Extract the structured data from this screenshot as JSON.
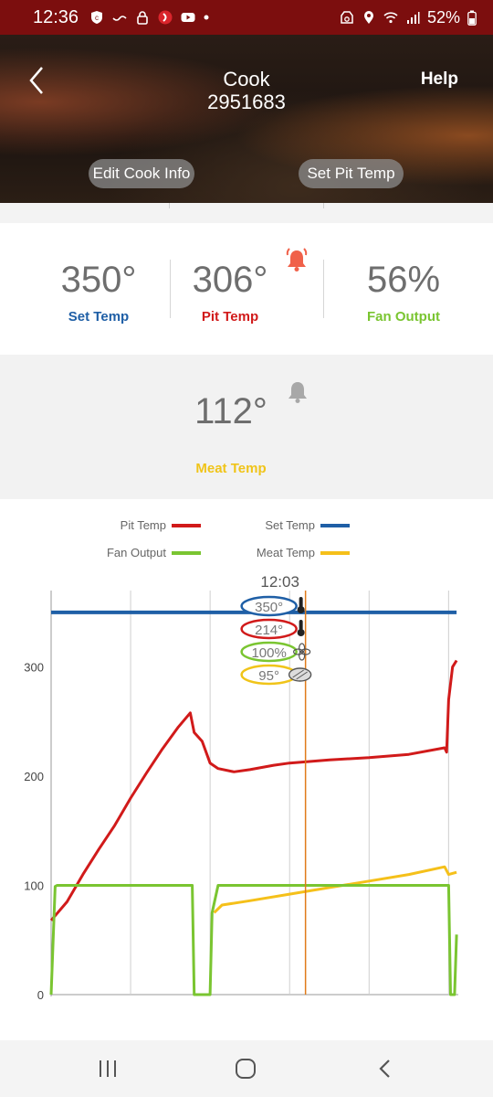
{
  "status_bar": {
    "time": "12:36",
    "battery": "52%",
    "icons_left": [
      "shield-icon",
      "squiggle-icon",
      "lock-icon",
      "app-icon",
      "youtube-icon",
      "dot-icon"
    ],
    "icons_right": [
      "recycle-icon",
      "location-icon",
      "wifi-icon",
      "signal-icon",
      "battery-icon"
    ]
  },
  "header": {
    "title": "Cook",
    "subtitle": "2951683",
    "help_label": "Help",
    "edit_cook_info_label": "Edit Cook Info",
    "set_pit_temp_label": "Set Pit Temp"
  },
  "temps": {
    "set_temp": {
      "value": "350°",
      "label": "Set Temp",
      "color": "#1f5fa6"
    },
    "pit_temp": {
      "value": "306°",
      "label": "Pit Temp",
      "color": "#d11a1a",
      "alarm_icon": "bell-alarm-icon",
      "alarm_color": "#f0614a"
    },
    "fan_output": {
      "value": "56%",
      "label": "Fan Output",
      "color": "#7ac531"
    }
  },
  "meat": {
    "value": "112°",
    "label": "Meat Temp",
    "color": "#f0c419",
    "alarm_icon": "bell-icon"
  },
  "chart_data": {
    "type": "line",
    "legend": [
      {
        "name": "Pit Temp",
        "color": "#d11a1a"
      },
      {
        "name": "Set Temp",
        "color": "#1f5fa6"
      },
      {
        "name": "Fan Output",
        "color": "#7ac531"
      },
      {
        "name": "Meat Temp",
        "color": "#f5c01a"
      }
    ],
    "y_ticks": [
      "0",
      "100",
      "200",
      "300"
    ],
    "ylim": [
      0,
      370
    ],
    "xlim": [
      0,
      100
    ],
    "grid_x": [
      20,
      40,
      60,
      80,
      100
    ],
    "cursor": {
      "time_label": "12:03",
      "x": 64,
      "color": "#e07b1a",
      "readouts": [
        {
          "text": "350°",
          "color": "#1f5fa6",
          "icon": "thermometer-icon"
        },
        {
          "text": "214°",
          "color": "#d11a1a",
          "icon": "thermometer-icon"
        },
        {
          "text": "100%",
          "color": "#7ac531",
          "icon": "fan-icon"
        },
        {
          "text": "95°",
          "color": "#f0c419",
          "icon": "steak-icon"
        }
      ]
    },
    "series": [
      {
        "name": "Set Temp",
        "color": "#1f5fa6",
        "x": [
          0,
          102
        ],
        "y": [
          350,
          350
        ]
      },
      {
        "name": "Pit Temp",
        "color": "#d11a1a",
        "x": [
          0,
          4,
          8,
          12,
          16,
          20,
          24,
          28,
          32,
          35,
          36,
          38,
          40,
          42,
          46,
          50,
          56,
          60,
          70,
          80,
          90,
          99,
          99.5,
          100,
          101,
          102
        ],
        "y": [
          68,
          85,
          110,
          133,
          155,
          180,
          203,
          225,
          245,
          258,
          240,
          232,
          212,
          207,
          204,
          206,
          210,
          212,
          215,
          217,
          220,
          226,
          222,
          270,
          300,
          306
        ]
      },
      {
        "name": "Fan Output",
        "color": "#7ac531",
        "x": [
          0,
          1,
          1.5,
          35.5,
          36,
          40,
          40.5,
          42,
          100,
          100.5,
          101.5,
          102
        ],
        "y": [
          0,
          99,
          100,
          100,
          0,
          0,
          75,
          100,
          100,
          0,
          0,
          55
        ]
      },
      {
        "name": "Meat Temp",
        "color": "#f5c01a",
        "x": [
          41,
          43,
          50,
          60,
          70,
          80,
          90,
          99,
          100,
          102
        ],
        "y": [
          75,
          82,
          86,
          92,
          98,
          104,
          110,
          117,
          110,
          112
        ]
      }
    ]
  },
  "nav": {
    "icons": [
      "recent-apps-icon",
      "home-icon",
      "back-nav-icon"
    ]
  }
}
